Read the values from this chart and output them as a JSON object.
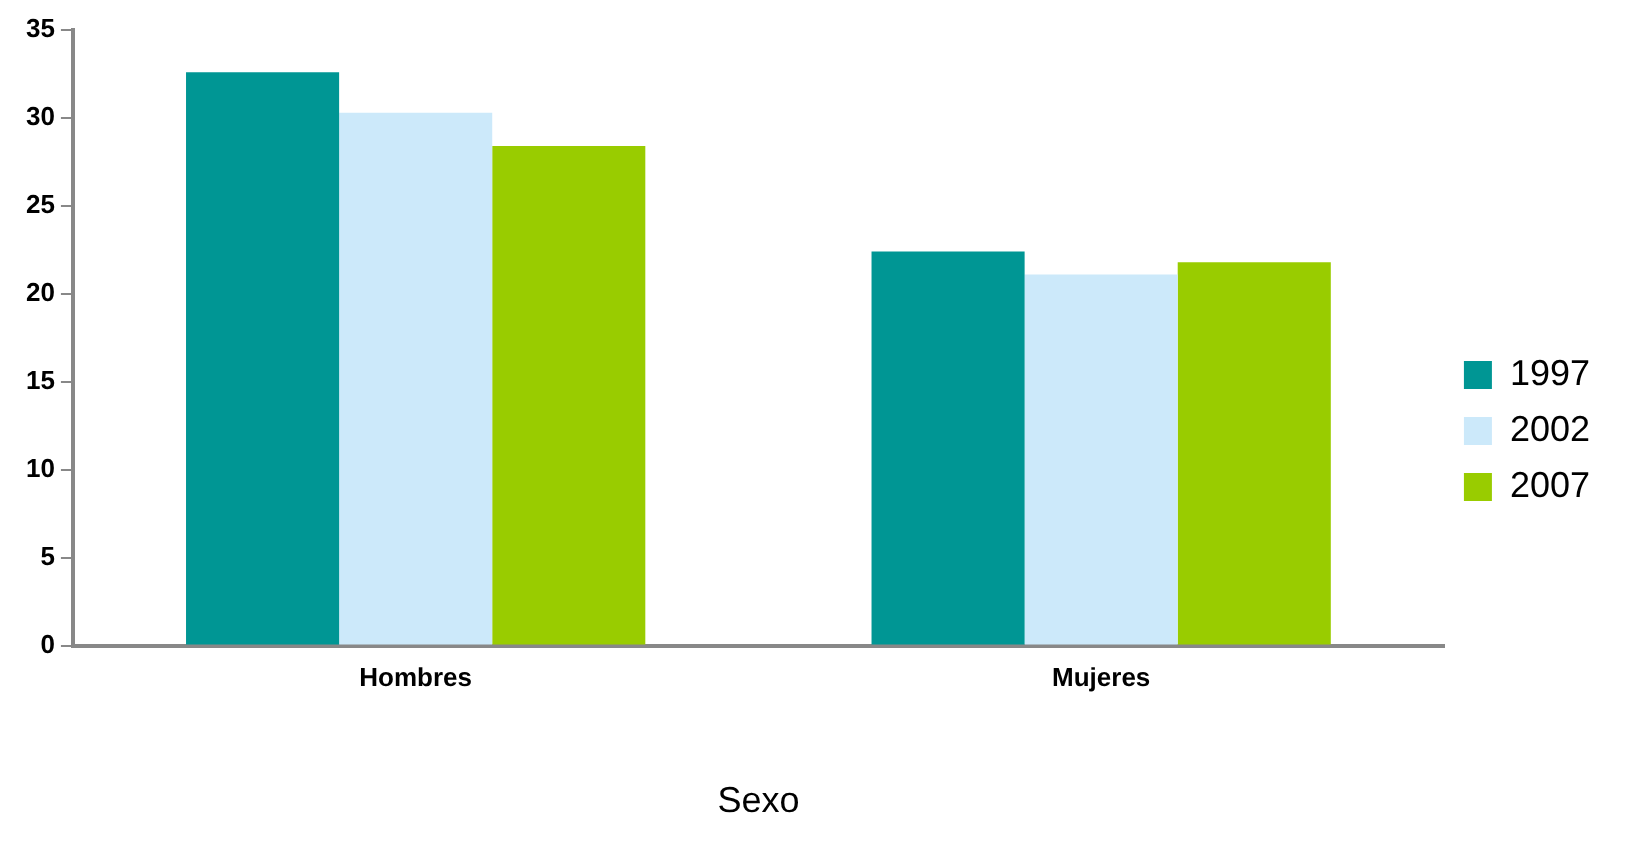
{
  "chart_data": {
    "type": "bar",
    "xlabel": "Sexo",
    "categories": [
      "Hombres",
      "Mujeres"
    ],
    "series": [
      {
        "name": "1997",
        "color": "#009694",
        "values": [
          32.6,
          22.4
        ]
      },
      {
        "name": "2002",
        "color": "#cce9fa",
        "values": [
          30.3,
          21.1
        ]
      },
      {
        "name": "2007",
        "color": "#99cc00",
        "values": [
          28.4,
          21.8
        ]
      }
    ],
    "ylim": [
      0,
      35
    ],
    "yticks": [
      0,
      5,
      10,
      15,
      20,
      25,
      30,
      35
    ],
    "grid": false,
    "legend": "right"
  }
}
